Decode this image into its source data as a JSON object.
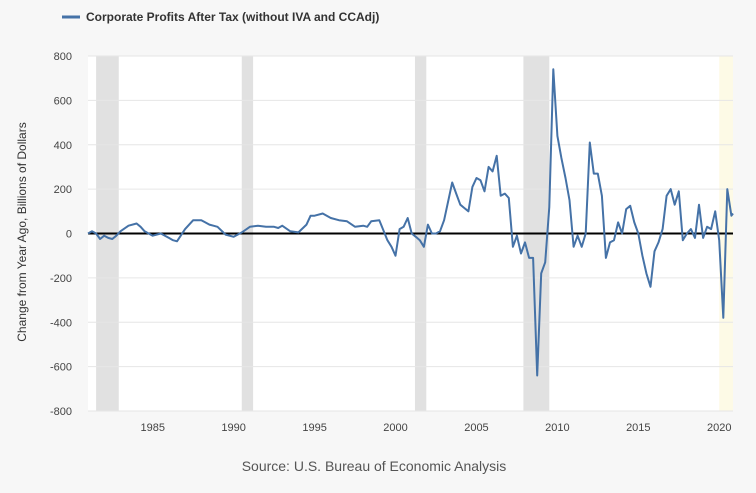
{
  "chart_data": {
    "type": "line",
    "title": "",
    "xlabel": "",
    "ylabel": "Change from Year Ago, Billions of Dollars",
    "source": "Source: U.S. Bureau of Economic Analysis",
    "xlim": [
      1981,
      2020.85
    ],
    "ylim": [
      -800,
      800
    ],
    "x_ticks": [
      "1985",
      "1990",
      "1995",
      "2000",
      "2005",
      "2010",
      "2015",
      "2020"
    ],
    "y_ticks": [
      "800",
      "600",
      "400",
      "200",
      "0",
      "-200",
      "-400",
      "-600",
      "-800"
    ],
    "grid": "horizontal",
    "legend_position": "top-left",
    "recessions": [
      [
        1981.5,
        1982.9
      ],
      [
        1990.5,
        1991.2
      ],
      [
        2001.2,
        2001.9
      ],
      [
        2007.9,
        2009.5
      ]
    ],
    "highlight": [
      2020.0,
      2020.85
    ],
    "colors": {
      "line": "#4572a7",
      "recession": "#e1e1e1",
      "highlight": "#fdfae6",
      "zero_line": "#000000"
    },
    "series": [
      {
        "name": "Corporate Profits After Tax (without IVA and CCAdj)",
        "x": [
          1981.0,
          1981.25,
          1981.5,
          1981.75,
          1982.0,
          1982.25,
          1982.5,
          1982.75,
          1983.0,
          1983.5,
          1984.0,
          1984.25,
          1984.5,
          1985.0,
          1985.5,
          1986.0,
          1986.25,
          1986.5,
          1987.0,
          1987.5,
          1988.0,
          1988.25,
          1988.5,
          1988.75,
          1989.0,
          1989.5,
          1990.0,
          1990.5,
          1991.0,
          1991.5,
          1992.0,
          1992.5,
          1992.75,
          1993.0,
          1993.5,
          1994.0,
          1994.5,
          1994.75,
          1995.0,
          1995.5,
          1996.0,
          1996.5,
          1997.0,
          1997.5,
          1998.0,
          1998.25,
          1998.5,
          1999.0,
          1999.5,
          1999.75,
          2000.0,
          2000.25,
          2000.5,
          2000.75,
          2001.0,
          2001.25,
          2001.5,
          2001.75,
          2002.0,
          2002.25,
          2002.5,
          2002.75,
          2003.0,
          2003.5,
          2003.75,
          2004.0,
          2004.25,
          2004.5,
          2004.75,
          2005.0,
          2005.25,
          2005.5,
          2005.75,
          2006.0,
          2006.25,
          2006.5,
          2006.75,
          2007.0,
          2007.25,
          2007.5,
          2007.75,
          2008.0,
          2008.25,
          2008.5,
          2008.75,
          2009.0,
          2009.25,
          2009.5,
          2009.75,
          2010.0,
          2010.25,
          2010.5,
          2010.75,
          2011.0,
          2011.25,
          2011.5,
          2011.75,
          2012.0,
          2012.25,
          2012.5,
          2012.75,
          2013.0,
          2013.25,
          2013.5,
          2013.75,
          2014.0,
          2014.25,
          2014.5,
          2014.75,
          2015.0,
          2015.25,
          2015.5,
          2015.75,
          2016.0,
          2016.25,
          2016.5,
          2016.75,
          2017.0,
          2017.25,
          2017.5,
          2017.75,
          2018.0,
          2018.25,
          2018.5,
          2018.75,
          2019.0,
          2019.25,
          2019.5,
          2019.75,
          2020.0,
          2020.25,
          2020.5,
          2020.75,
          2020.85
        ],
        "y": [
          0,
          10,
          0,
          -25,
          -10,
          -20,
          -25,
          -10,
          10,
          35,
          45,
          30,
          10,
          -10,
          0,
          -20,
          -30,
          -35,
          20,
          60,
          60,
          50,
          40,
          35,
          30,
          -5,
          -15,
          5,
          30,
          35,
          30,
          30,
          25,
          35,
          10,
          5,
          40,
          80,
          80,
          90,
          70,
          60,
          55,
          30,
          35,
          30,
          55,
          60,
          -30,
          -60,
          -100,
          20,
          30,
          70,
          0,
          -15,
          -30,
          -60,
          40,
          0,
          0,
          10,
          60,
          230,
          180,
          130,
          115,
          100,
          210,
          250,
          240,
          190,
          300,
          280,
          350,
          170,
          180,
          160,
          -60,
          -10,
          -90,
          -40,
          -110,
          -110,
          -640,
          -180,
          -130,
          120,
          740,
          440,
          340,
          250,
          150,
          -60,
          -10,
          -60,
          0,
          410,
          270,
          270,
          170,
          -110,
          -40,
          -30,
          50,
          0,
          110,
          125,
          50,
          0,
          -100,
          -180,
          -240,
          -80,
          -40,
          20,
          170,
          200,
          130,
          190,
          -30,
          0,
          20,
          -20,
          130,
          -20,
          30,
          20,
          100,
          -30,
          -380,
          200,
          80,
          90
        ]
      }
    ]
  }
}
